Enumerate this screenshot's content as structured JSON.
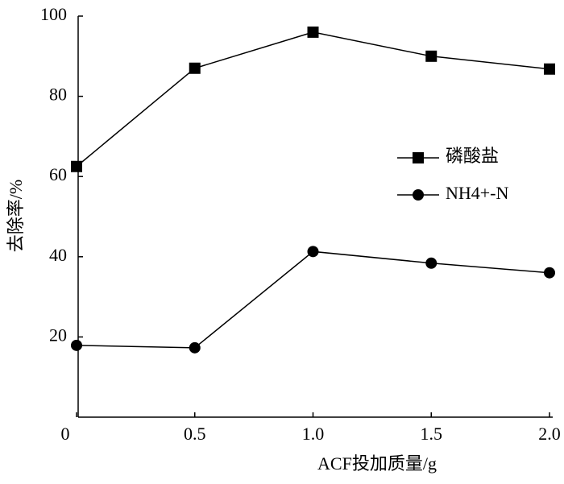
{
  "chart_data": {
    "type": "line",
    "x_label": "ACF投加质量/g",
    "y_label": "去除率/%",
    "x": [
      0,
      0.5,
      1,
      1.5,
      2
    ],
    "series": [
      {
        "name": "磷酸盐",
        "color": "#000000",
        "marker": "square",
        "values": [
          62.5,
          87,
          96,
          90,
          86.8
        ]
      },
      {
        "name": "NH4+-N",
        "color": "#000000",
        "marker": "circle",
        "values": [
          17.9,
          17.3,
          41.3,
          38.4,
          36
        ]
      }
    ],
    "xlim": [
      0,
      2
    ],
    "xticks": [
      0,
      0.5,
      {
        "value": 1,
        "label": "1.0"
      },
      1.5,
      {
        "value": 2,
        "label": "2.0"
      }
    ],
    "ylim": [
      0,
      100
    ],
    "yticks": [
      20,
      40,
      60,
      80,
      100
    ],
    "grid": false,
    "legend": "right"
  }
}
